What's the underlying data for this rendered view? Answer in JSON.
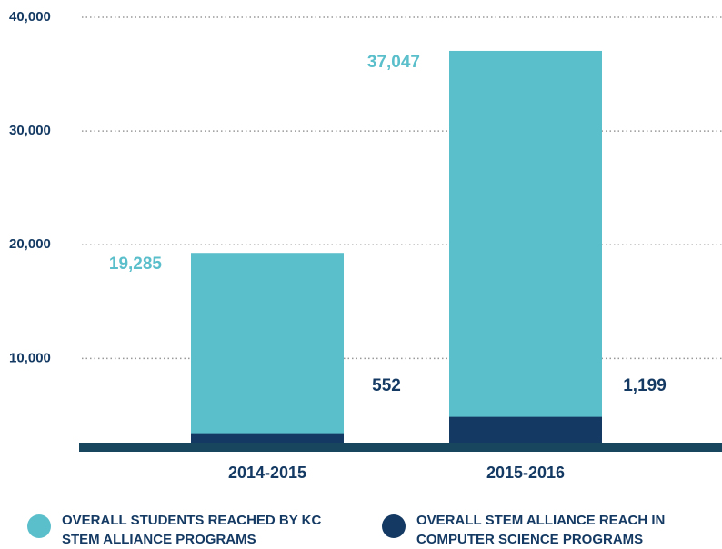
{
  "chart_data": {
    "type": "bar",
    "categories": [
      "2014-2015",
      "2015-2016"
    ],
    "series": [
      {
        "name": "OVERALL STUDENTS REACHED BY KC STEM ALLIANCE PROGRAMS",
        "color": "#5bbfcb",
        "values": [
          19285,
          37047
        ],
        "value_labels": [
          "19,285",
          "37,047"
        ]
      },
      {
        "name": "OVERALL STEM ALLIANCE REACH IN COMPUTER SCIENCE PROGRAMS",
        "color": "#143a63",
        "values": [
          552,
          1199
        ],
        "value_labels": [
          "552",
          "1,199"
        ],
        "axis": "y2"
      }
    ],
    "ylim": [
      2200,
      40000
    ],
    "yticks": [
      {
        "value": 10000,
        "label": "10,000"
      },
      {
        "value": 20000,
        "label": "20,000"
      },
      {
        "value": 30000,
        "label": "30,000"
      },
      {
        "value": 40000,
        "label": "40,000"
      }
    ],
    "y2lim": [
      0,
      17000
    ],
    "grid": true
  }
}
